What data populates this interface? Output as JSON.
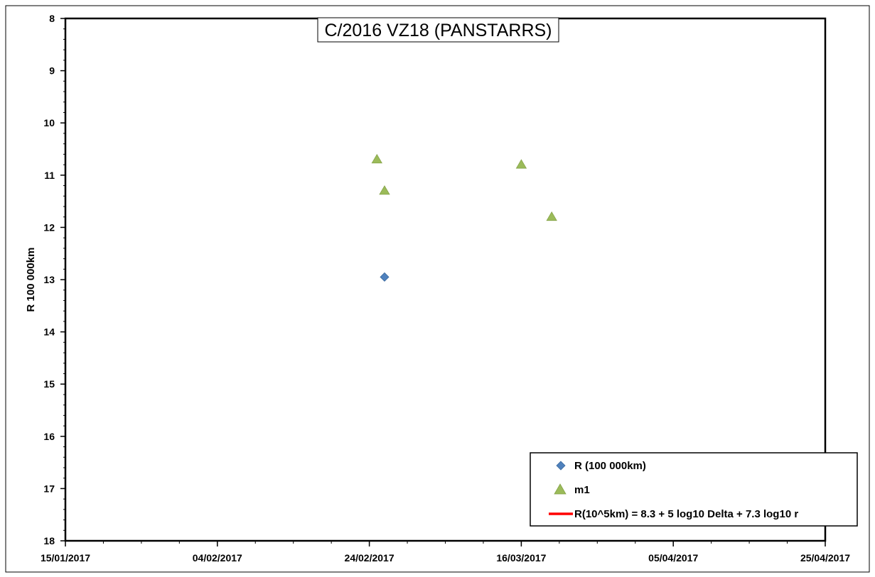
{
  "chart_data": {
    "type": "scatter",
    "title": "C/2016 VZ18 (PANSTARRS)",
    "xlabel": "",
    "ylabel": "R 100 000km",
    "x_ticks": [
      "15/01/2017",
      "04/02/2017",
      "24/02/2017",
      "16/03/2017",
      "05/04/2017",
      "25/04/2017"
    ],
    "xlim": [
      "2017-01-15",
      "2017-04-25"
    ],
    "ylim": [
      8,
      18
    ],
    "y_inverted": true,
    "y_ticks": [
      8,
      9,
      10,
      11,
      12,
      13,
      14,
      15,
      16,
      17,
      18
    ],
    "grid": false,
    "legend_position": "bottom-right",
    "series": [
      {
        "name": "R (100 000km)",
        "marker": "diamond",
        "color": "#4F81BD",
        "points": [
          {
            "x": "2017-02-26",
            "y": 12.95
          }
        ]
      },
      {
        "name": "m1",
        "marker": "triangle",
        "color": "#9BBB59",
        "points": [
          {
            "x": "2017-02-25",
            "y": 10.7
          },
          {
            "x": "2017-02-26",
            "y": 11.3
          },
          {
            "x": "2017-03-16",
            "y": 10.8
          },
          {
            "x": "2017-03-20",
            "y": 11.8
          }
        ]
      },
      {
        "name": "R(10^5km) = 8.3 + 5 log10 Delta + 7.3  log10 r",
        "marker": "line",
        "color": "#FF0000",
        "points": []
      }
    ]
  }
}
